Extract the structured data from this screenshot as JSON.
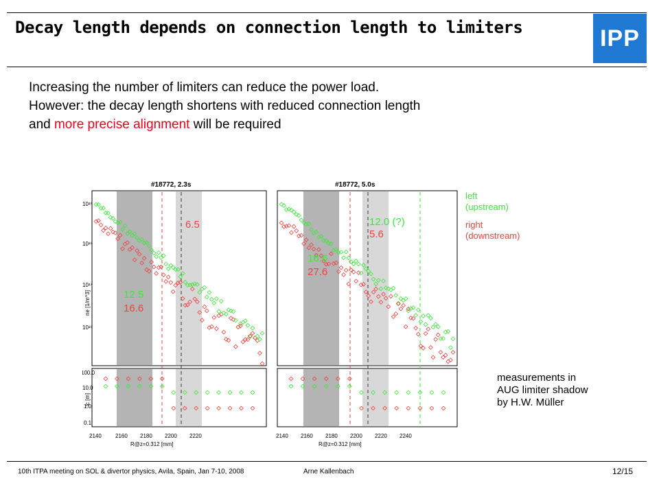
{
  "header": {
    "title": "Decay length depends on connection length to limiters",
    "logo_text": "IPP"
  },
  "intro": {
    "line1": "Increasing the number of limiters can reduce the power load.",
    "line2": "However: the decay length shortens with reduced connection length",
    "line3_pre": "and ",
    "line3_red": "more precise alignment",
    "line3_post": " will be required"
  },
  "figure": {
    "panels": [
      {
        "title": "#18772, 2.3s",
        "labels": {
          "green_top": "",
          "red_top": "6.5",
          "green_bottom": "12.5",
          "red_bottom": "16.6"
        }
      },
      {
        "title": "#18772, 5.0s",
        "labels": {
          "green_top": "12.0 (?)",
          "red_top": "5.6",
          "green_bottom": "16.6",
          "red_bottom": "27.6"
        }
      }
    ],
    "legend": {
      "left_1": "left",
      "left_2": "(upstream)",
      "right_1": "right",
      "right_2": "(downstream)"
    },
    "y_top_label": "ne [1/m^3]",
    "y_top_ticks": [
      "10¹⁹",
      "10¹⁸",
      "10¹⁷",
      "10¹⁶"
    ],
    "y_bottom_label": "lc [m]",
    "y_bottom_ticks": [
      "100.0",
      "10.0",
      "1.0",
      "0.1"
    ],
    "x_ticks": [
      "2140",
      "2160",
      "2180",
      "2200",
      "2220",
      "2240"
    ],
    "x_label": "R@z=0.312 [mm]",
    "colors": {
      "green": "#3ce63c",
      "red": "#ef4040",
      "shade_dark": "#b4b4b4",
      "shade_light": "#d8d8d8"
    }
  },
  "note": {
    "line1": "measurements in",
    "line2": "AUG limiter shadow",
    "line3": "by H.W. Müller"
  },
  "footer": {
    "meeting": "10th ITPA meeting on SOL & divertor physics,  Avila,  Spain, Jan 7-10, 2008",
    "author": "Arne Kallenbach",
    "page": "12/15"
  }
}
